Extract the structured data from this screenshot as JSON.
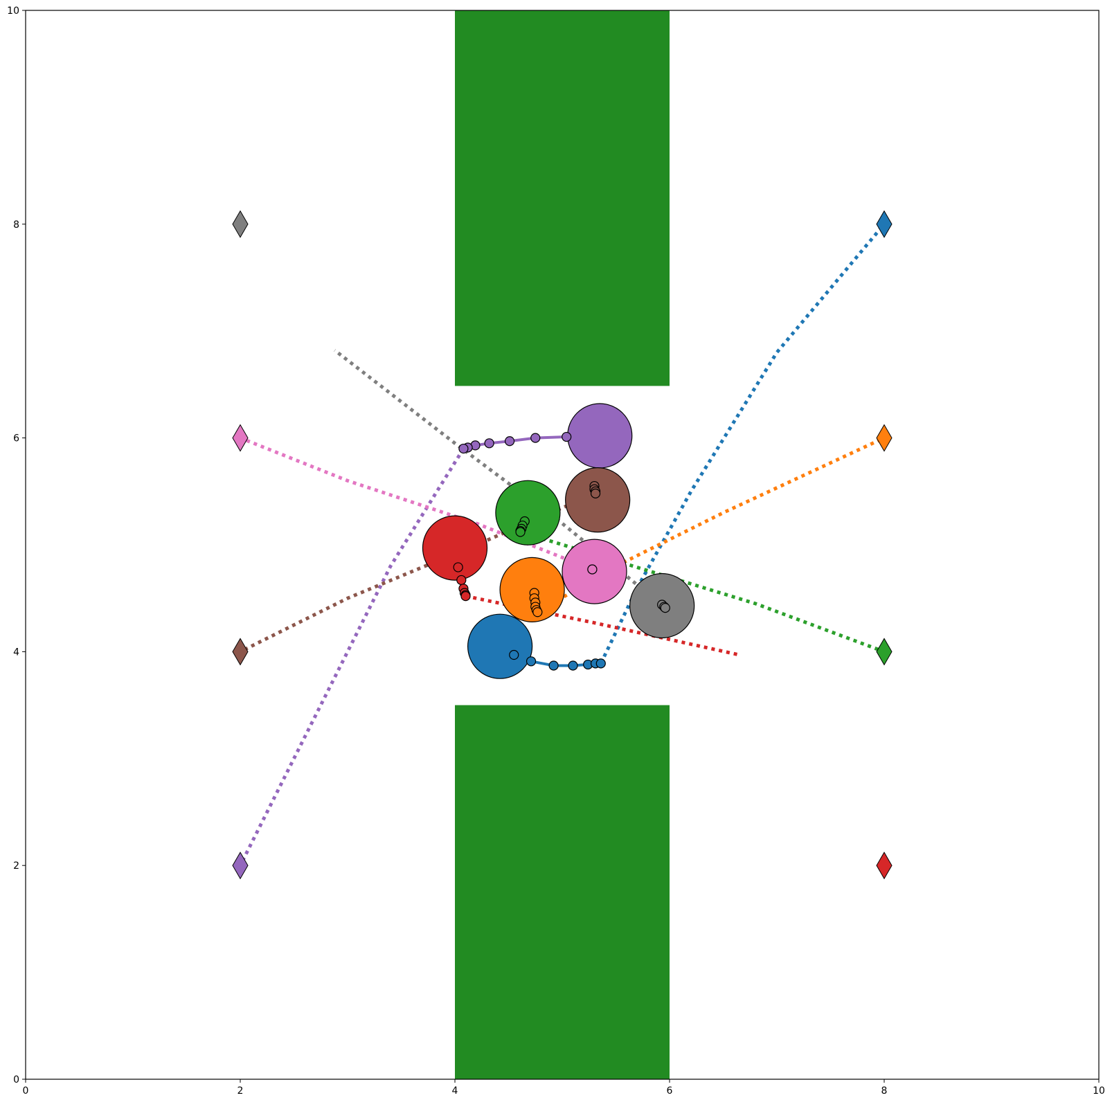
{
  "chart_data": {
    "type": "scatter",
    "title": "",
    "xlabel": "",
    "ylabel": "",
    "xlim": [
      0,
      10
    ],
    "ylim": [
      0,
      10
    ],
    "grid": false,
    "x_ticks": [
      "0",
      "2",
      "4",
      "6",
      "8",
      "10"
    ],
    "y_ticks": [
      "0",
      "2",
      "4",
      "6",
      "8",
      "10"
    ],
    "obstacles": [
      {
        "x": 4.0,
        "y": 6.5,
        "width": 2.0,
        "height": 3.5,
        "color": "#228b22"
      },
      {
        "x": 4.0,
        "y": 0.0,
        "width": 2.0,
        "height": 3.5,
        "color": "#228b22"
      }
    ],
    "agents": [
      {
        "color": "#1f77b4",
        "goal": [
          8.0,
          8.0
        ],
        "position": [
          4.42,
          4.05
        ],
        "radius": 0.3,
        "history": [
          [
            4.55,
            3.97
          ],
          [
            4.71,
            3.91
          ],
          [
            4.92,
            3.87
          ],
          [
            5.1,
            3.87
          ],
          [
            5.24,
            3.88
          ],
          [
            5.31,
            3.89
          ],
          [
            5.36,
            3.89
          ]
        ],
        "history_line": true,
        "history_marker": "filled",
        "plan": [
          [
            5.36,
            3.89
          ],
          [
            5.7,
            4.6
          ],
          [
            6.2,
            5.5
          ],
          [
            7.0,
            6.8
          ],
          [
            8.0,
            8.0
          ]
        ]
      },
      {
        "color": "#ff7f0e",
        "goal": [
          8.0,
          6.0
        ],
        "position": [
          4.72,
          4.58
        ],
        "radius": 0.3,
        "history": [
          [
            4.74,
            4.55
          ],
          [
            4.74,
            4.5
          ],
          [
            4.75,
            4.46
          ],
          [
            4.75,
            4.42
          ],
          [
            4.76,
            4.39
          ],
          [
            4.77,
            4.37
          ]
        ],
        "history_line": false,
        "history_marker": "filled",
        "plan": [
          [
            4.77,
            4.37
          ],
          [
            5.5,
            4.8
          ],
          [
            6.5,
            5.3
          ],
          [
            8.0,
            6.0
          ]
        ]
      },
      {
        "color": "#2ca02c",
        "goal": [
          8.0,
          4.0
        ],
        "position": [
          4.68,
          5.3
        ],
        "radius": 0.3,
        "history": [
          [
            4.65,
            5.22
          ],
          [
            4.63,
            5.18
          ],
          [
            4.62,
            5.15
          ],
          [
            4.61,
            5.13
          ],
          [
            4.61,
            5.12
          ]
        ],
        "history_line": false,
        "history_marker": "filled",
        "plan": [
          [
            4.61,
            5.12
          ],
          [
            5.5,
            4.85
          ],
          [
            6.8,
            4.45
          ],
          [
            8.0,
            4.0
          ]
        ]
      },
      {
        "color": "#d62728",
        "goal": [
          8.0,
          2.0
        ],
        "position": [
          4.0,
          4.97
        ],
        "radius": 0.3,
        "history": [
          [
            4.03,
            4.79
          ],
          [
            4.06,
            4.67
          ],
          [
            4.08,
            4.59
          ],
          [
            4.09,
            4.55
          ],
          [
            4.1,
            4.53
          ],
          [
            4.1,
            4.52
          ]
        ],
        "history_line": false,
        "history_marker": "filled",
        "plan": [
          [
            4.1,
            4.52
          ],
          [
            5.3,
            4.27
          ],
          [
            6.65,
            3.97
          ]
        ]
      },
      {
        "color": "#9467bd",
        "goal": [
          2.0,
          2.0
        ],
        "position": [
          5.35,
          6.02
        ],
        "radius": 0.3,
        "history": [
          [
            5.04,
            6.01
          ],
          [
            4.75,
            6.0
          ],
          [
            4.51,
            5.97
          ],
          [
            4.32,
            5.95
          ],
          [
            4.19,
            5.93
          ],
          [
            4.12,
            5.91
          ],
          [
            4.08,
            5.9
          ]
        ],
        "history_line": true,
        "history_marker": "filled",
        "plan": [
          [
            4.08,
            5.9
          ],
          [
            3.4,
            4.8
          ],
          [
            2.6,
            3.2
          ],
          [
            2.0,
            2.0
          ]
        ]
      },
      {
        "color": "#8c564b",
        "goal": [
          2.0,
          4.0
        ],
        "position": [
          5.33,
          5.42
        ],
        "radius": 0.3,
        "history": [
          [
            5.3,
            5.55
          ],
          [
            5.3,
            5.52
          ],
          [
            5.31,
            5.5
          ],
          [
            5.31,
            5.48
          ]
        ],
        "history_line": false,
        "history_marker": "filled",
        "plan": [
          [
            5.31,
            5.48
          ],
          [
            4.2,
            5.0
          ],
          [
            3.0,
            4.5
          ],
          [
            2.0,
            4.0
          ]
        ]
      },
      {
        "color": "#e377c2",
        "goal": [
          2.0,
          6.0
        ],
        "position": [
          5.3,
          4.75
        ],
        "radius": 0.3,
        "history": [
          [
            5.28,
            4.77
          ],
          [
            5.28,
            4.77
          ]
        ],
        "history_line": false,
        "history_marker": "filled",
        "plan": [
          [
            5.28,
            4.77
          ],
          [
            4.2,
            5.2
          ],
          [
            3.0,
            5.6
          ],
          [
            2.0,
            6.0
          ]
        ]
      },
      {
        "color": "#7f7f7f",
        "goal": [
          2.0,
          8.0
        ],
        "position": [
          5.93,
          4.43
        ],
        "radius": 0.3,
        "history": [
          [
            5.93,
            4.44
          ],
          [
            5.95,
            4.42
          ],
          [
            5.96,
            4.41
          ]
        ],
        "history_line": false,
        "history_marker": "filled",
        "plan": [
          [
            5.96,
            4.41
          ],
          [
            5.0,
            5.2
          ],
          [
            4.0,
            5.95
          ],
          [
            2.88,
            6.82
          ]
        ]
      }
    ]
  }
}
